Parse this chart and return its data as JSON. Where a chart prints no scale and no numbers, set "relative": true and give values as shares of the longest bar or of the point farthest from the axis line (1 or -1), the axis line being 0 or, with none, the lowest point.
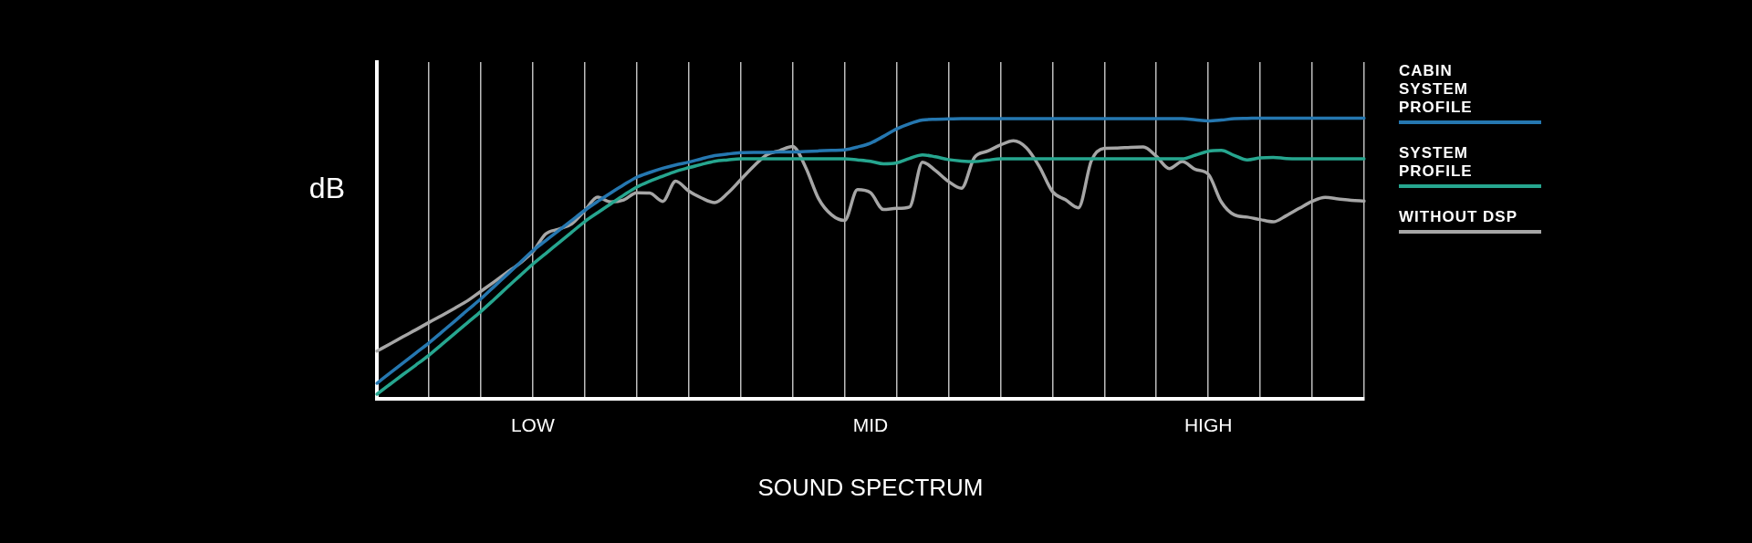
{
  "chart_data": {
    "type": "line",
    "relative": true,
    "xlabel": "SOUND SPECTRUM",
    "ylabel": "dB",
    "grid": "x",
    "legend": "top right",
    "categories": [
      null,
      null,
      null,
      null,
      null,
      null,
      null,
      null,
      null,
      null,
      null,
      null,
      "LOW",
      null,
      null,
      null,
      null,
      null,
      null,
      null,
      null,
      null,
      null,
      null,
      null,
      null,
      null,
      null,
      null,
      null,
      null,
      null,
      null,
      null,
      null,
      null,
      null,
      null,
      "MID",
      null,
      null,
      null,
      null,
      null,
      null,
      null,
      null,
      null,
      null,
      null,
      null,
      null,
      null,
      null,
      null,
      null,
      null,
      null,
      null,
      null,
      null,
      null,
      null,
      null,
      "HIGH",
      null,
      null,
      null,
      null,
      null,
      null,
      null,
      null,
      null,
      null,
      null,
      null
    ],
    "series": [
      {
        "name": "CABIN\nSYSTEM PROFILE",
        "color": "#2577b0",
        "values": [
          0.054,
          0.09,
          0.126,
          0.162,
          0.198,
          0.237,
          0.276,
          0.316,
          0.355,
          0.398,
          0.441,
          0.484,
          0.527,
          0.563,
          0.599,
          0.635,
          0.671,
          0.703,
          0.733,
          0.762,
          0.789,
          0.806,
          0.821,
          0.833,
          0.843,
          0.855,
          0.866,
          0.872,
          0.877,
          0.878,
          0.878,
          0.879,
          0.879,
          0.881,
          0.883,
          0.885,
          0.887,
          0.897,
          0.911,
          0.935,
          0.961,
          0.98,
          0.993,
          0.996,
          0.997,
          0.998,
          0.998,
          0.998,
          0.998,
          0.998,
          0.998,
          0.998,
          0.998,
          0.998,
          0.998,
          0.998,
          0.998,
          0.998,
          0.998,
          0.998,
          0.998,
          0.998,
          0.998,
          0.994,
          0.99,
          0.993,
          0.998,
          0.999,
          1,
          1,
          1,
          1,
          1,
          1,
          1,
          1,
          1
        ]
      },
      {
        "name": "SYSTEM PROFILE",
        "color": "#26a68f",
        "values": [
          0.015,
          0.05,
          0.085,
          0.119,
          0.154,
          0.193,
          0.232,
          0.271,
          0.31,
          0.352,
          0.395,
          0.437,
          0.479,
          0.517,
          0.555,
          0.593,
          0.631,
          0.663,
          0.694,
          0.725,
          0.754,
          0.775,
          0.793,
          0.81,
          0.823,
          0.835,
          0.846,
          0.851,
          0.855,
          0.855,
          0.855,
          0.855,
          0.855,
          0.855,
          0.855,
          0.855,
          0.855,
          0.851,
          0.846,
          0.837,
          0.84,
          0.856,
          0.869,
          0.862,
          0.852,
          0.847,
          0.845,
          0.85,
          0.855,
          0.855,
          0.855,
          0.855,
          0.855,
          0.855,
          0.855,
          0.855,
          0.855,
          0.855,
          0.855,
          0.855,
          0.855,
          0.855,
          0.855,
          0.868,
          0.882,
          0.885,
          0.867,
          0.851,
          0.858,
          0.86,
          0.856,
          0.855,
          0.855,
          0.855,
          0.855,
          0.855,
          0.855
        ]
      },
      {
        "name": "WITHOUT DSP",
        "color": "#a6a6a6",
        "values": [
          0.169,
          0.194,
          0.22,
          0.245,
          0.271,
          0.296,
          0.322,
          0.349,
          0.382,
          0.415,
          0.449,
          0.482,
          0.523,
          0.587,
          0.604,
          0.623,
          0.67,
          0.718,
          0.701,
          0.708,
          0.734,
          0.733,
          0.703,
          0.775,
          0.74,
          0.715,
          0.699,
          0.732,
          0.78,
          0.828,
          0.869,
          0.884,
          0.899,
          0.825,
          0.713,
          0.655,
          0.635,
          0.745,
          0.734,
          0.674,
          0.678,
          0.683,
          0.843,
          0.813,
          0.774,
          0.75,
          0.86,
          0.882,
          0.904,
          0.919,
          0.894,
          0.827,
          0.738,
          0.709,
          0.68,
          0.848,
          0.892,
          0.893,
          0.896,
          0.897,
          0.864,
          0.82,
          0.845,
          0.817,
          0.8,
          0.701,
          0.655,
          0.647,
          0.638,
          0.63,
          0.652,
          0.678,
          0.703,
          0.717,
          0.712,
          0.707,
          0.704
        ]
      }
    ]
  }
}
